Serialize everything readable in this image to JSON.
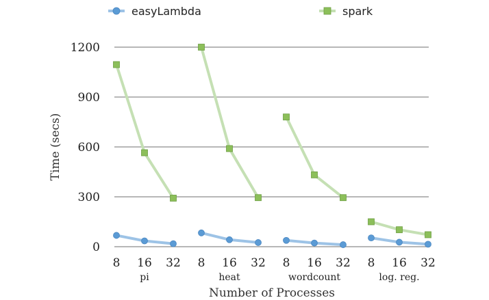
{
  "chart_data": {
    "type": "line",
    "title": "",
    "xlabel": "Number of Processes",
    "ylabel": "Time (secs)",
    "ylim": [
      0,
      1200
    ],
    "yticks": [
      0,
      300,
      600,
      900,
      1200
    ],
    "grid": "horizontal",
    "legend_position": "top",
    "groups": [
      {
        "name": "pi",
        "x": [
          "8",
          "16",
          "32"
        ]
      },
      {
        "name": "heat",
        "x": [
          "8",
          "16",
          "32"
        ]
      },
      {
        "name": "wordcount",
        "x": [
          "8",
          "16",
          "32"
        ]
      },
      {
        "name": "log. reg.",
        "x": [
          "8",
          "16",
          "32"
        ]
      }
    ],
    "series": [
      {
        "name": "easyLambda",
        "marker": "circle",
        "color": "#5b9bd5",
        "line_color": "#9dc3e6",
        "values": [
          [
            68,
            35,
            18
          ],
          [
            83,
            42,
            25
          ],
          [
            38,
            22,
            12
          ],
          [
            53,
            27,
            15
          ]
        ]
      },
      {
        "name": "spark",
        "marker": "square",
        "color": "#8cbf5a",
        "line_color": "#c5e0b4",
        "values": [
          [
            1095,
            565,
            292
          ],
          [
            1200,
            590,
            295
          ],
          [
            780,
            432,
            295
          ],
          [
            150,
            102,
            72
          ]
        ]
      }
    ]
  }
}
